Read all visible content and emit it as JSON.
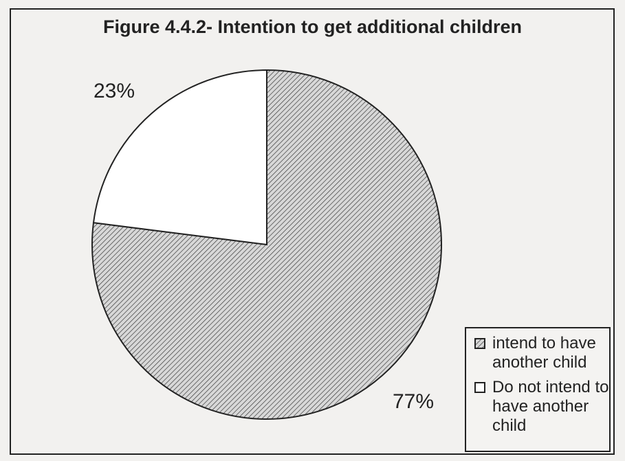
{
  "chart_data": {
    "type": "pie",
    "title": "Figure 4.4.2- Intention to get additional children",
    "slices": [
      {
        "label": "intend to have another child",
        "value": 77,
        "value_label": "77%",
        "fill": "hatched"
      },
      {
        "label": "Do not intend to have another child",
        "value": 23,
        "value_label": "23%",
        "fill": "#ffffff"
      }
    ],
    "legend_position": "bottom-right",
    "colors": {
      "hatch_stroke": "#3a3a3a",
      "hatch_background": "#d8d8d8",
      "outline": "#222222"
    }
  }
}
